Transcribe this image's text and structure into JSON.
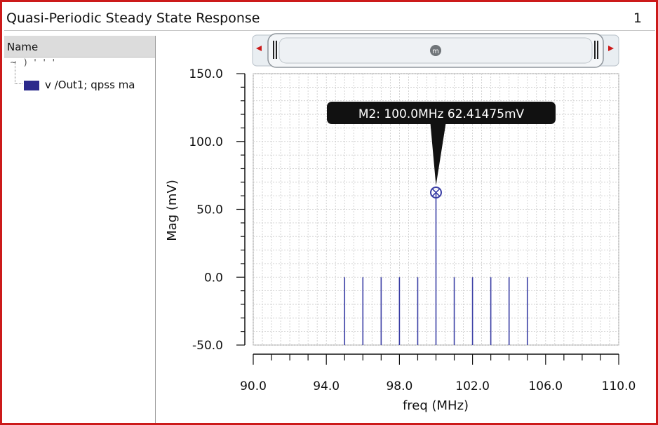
{
  "window": {
    "title": "Quasi-Periodic Steady State Response",
    "page_number": "1"
  },
  "left_panel": {
    "header_label": "Name",
    "truncated_row": "~ ) ' ' '",
    "trace": {
      "label": "v /Out1; qpss ma",
      "color": "#2c2a8c"
    }
  },
  "zoom_bar": {
    "thumb_label": "m"
  },
  "marker": {
    "label": "M2: 100.0MHz 62.41475mV",
    "x": 100.0,
    "y": 62.41475
  },
  "colors": {
    "frame_border": "#cc1a1a",
    "trace": "#3b3fa5",
    "grid": "#c9c9c9",
    "tooltip_bg": "#111111"
  },
  "chart_data": {
    "type": "bar",
    "title": "",
    "xlabel": "freq (MHz)",
    "ylabel": "Mag (mV)",
    "xlim": [
      90.0,
      110.0
    ],
    "ylim": [
      -50.0,
      150.0
    ],
    "x_ticks": [
      "90.0",
      "94.0",
      "98.0",
      "102.0",
      "106.0",
      "110.0"
    ],
    "x_tick_values": [
      90,
      94,
      98,
      102,
      106,
      110
    ],
    "y_ticks": [
      "150.0",
      "100.0",
      "50.0",
      "0.0",
      "-50.0"
    ],
    "y_tick_values": [
      150,
      100,
      50,
      0,
      -50
    ],
    "grid": true,
    "series": [
      {
        "name": "v /Out1; qpss ma",
        "style": "stem",
        "x": [
          95,
          96,
          97,
          98,
          99,
          100,
          101,
          102,
          103,
          104,
          105
        ],
        "y": [
          0.0,
          0.0,
          0.0,
          0.0,
          0.0,
          62.41475,
          0.0,
          0.0,
          0.0,
          0.0,
          0.0
        ]
      }
    ]
  }
}
